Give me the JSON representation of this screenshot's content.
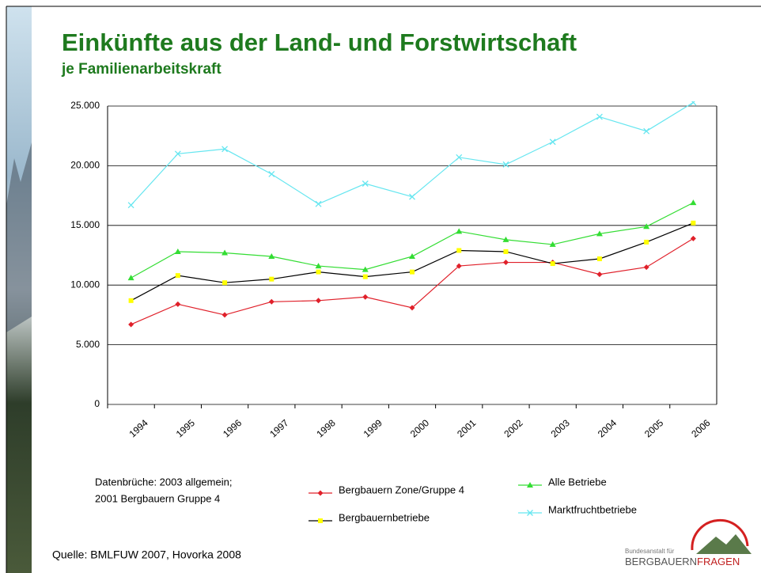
{
  "chart_data": {
    "type": "line",
    "title": "Einkünfte aus der Land- und Forstwirtschaft",
    "subtitle": "je Familienarbeitskraft",
    "categories": [
      "1994",
      "1995",
      "1996",
      "1997",
      "1998",
      "1999",
      "2000",
      "2001",
      "2002",
      "2003",
      "2004",
      "2005",
      "2006"
    ],
    "series": [
      {
        "name": "Bergbauern Zone/Gruppe 4",
        "color": "#e0202a",
        "marker_color": "#e0202a",
        "marker": "diamond",
        "values": [
          6700,
          8400,
          7500,
          8600,
          8700,
          9000,
          8100,
          11600,
          11900,
          11900,
          10900,
          11500,
          13900
        ]
      },
      {
        "name": "Bergbauernbetriebe",
        "color": "#000000",
        "marker_color": "#ffff00",
        "marker": "square",
        "values": [
          8700,
          10800,
          10200,
          10500,
          11100,
          10700,
          11100,
          12900,
          12800,
          11800,
          12200,
          13600,
          15200
        ]
      },
      {
        "name": "Alle Betriebe",
        "color": "#33dd33",
        "marker_color": "#33dd33",
        "marker": "triangle",
        "values": [
          10600,
          12800,
          12700,
          12400,
          11600,
          11300,
          12400,
          14500,
          13800,
          13400,
          14300,
          14900,
          16900
        ]
      },
      {
        "name": "Marktfruchtbetriebe",
        "color": "#66e6f0",
        "marker_color": "#66e6f0",
        "marker": "x",
        "values": [
          16700,
          21000,
          21400,
          19300,
          16800,
          18500,
          17400,
          20700,
          20100,
          22000,
          24100,
          22900,
          25300
        ]
      }
    ],
    "ylim": [
      0,
      25000
    ],
    "yticks": [
      0,
      {
        "value": 5000,
        "label": "5.000"
      },
      {
        "value": 10000,
        "label": "10.000"
      },
      {
        "value": 15000,
        "label": "15.000"
      },
      {
        "value": 20000,
        "label": "20.000"
      },
      {
        "value": 25000,
        "label": "25.000"
      }
    ],
    "grid": true,
    "notes": [
      "Datenbrüche: 2003 allgemein;",
      "2001 Bergbauern Gruppe 4"
    ],
    "source": "Quelle: BMLFUW 2007, Hovorka 2008"
  },
  "logo": {
    "line1": "Bundesanstalt für",
    "line2a": "BERGBAUERN",
    "line2b": "FRAGEN"
  }
}
